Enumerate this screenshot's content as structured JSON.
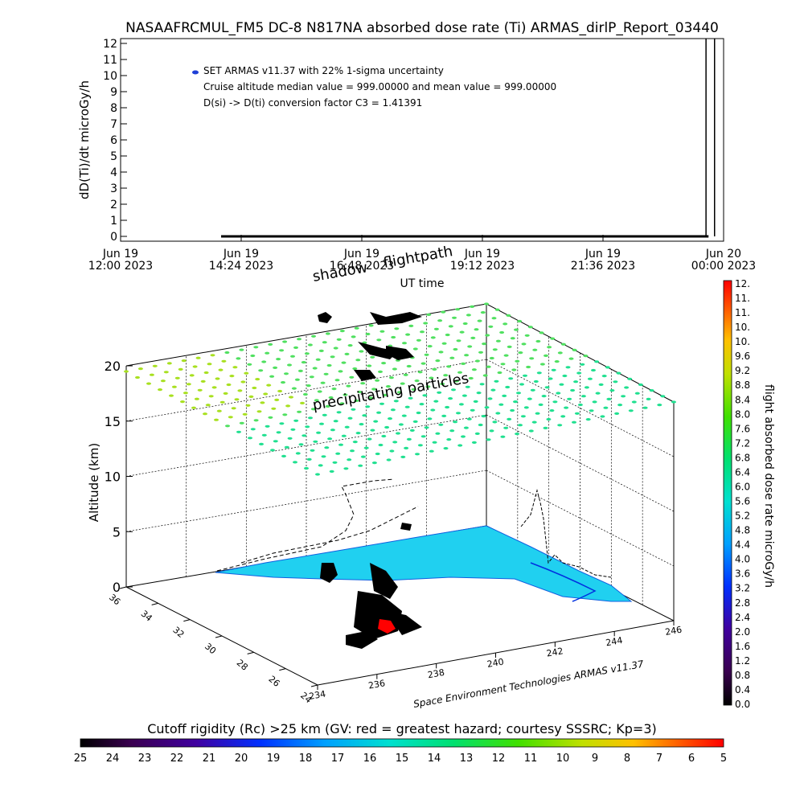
{
  "title": "NASAAFRCMUL_FM5 DC-8   N817NA absorbed dose rate (Ti) ARMAS_dirlP_Report_03440",
  "chart_data": [
    {
      "type": "line",
      "ylabel": "dD(Ti)/dt microGy/h",
      "xlabel": "UT time",
      "ylim": [
        0,
        12
      ],
      "yticks": [
        0,
        1,
        2,
        3,
        4,
        5,
        6,
        7,
        8,
        9,
        10,
        11,
        12
      ],
      "xticks": [
        {
          "line1": "Jun 19",
          "line2": "12:00 2023"
        },
        {
          "line1": "Jun 19",
          "line2": "14:24 2023"
        },
        {
          "line1": "Jun 19",
          "line2": "16:48 2023"
        },
        {
          "line1": "Jun 19",
          "line2": "19:12 2023"
        },
        {
          "line1": "Jun 19",
          "line2": "21:36 2023"
        },
        {
          "line1": "Jun 20",
          "line2": "00:00 2023"
        }
      ],
      "x_hours_range": [
        0,
        12
      ],
      "series": [
        {
          "name": "SET ARMAS v11.37 with 22% 1-sigma uncertainty",
          "x_hours": [
            2.0,
            11.7
          ],
          "y": [
            0,
            0
          ]
        }
      ],
      "spikes_hours": [
        11.65,
        11.82
      ],
      "legend_lines": [
        "SET ARMAS v11.37 with 22% 1-sigma uncertainty",
        "Cruise altitude median value = 999.00000 and mean value = 999.00000",
        "D(si) -> D(ti) conversion factor C3 = 1.41391"
      ],
      "legend_marker_color": "#1f3fd6"
    },
    {
      "type": "scatter",
      "ylabel": "Altitude (km)",
      "zticks": [
        0,
        5,
        10,
        15,
        20
      ],
      "lat_ticks": [
        "36",
        "34",
        "32",
        "30",
        "28",
        "26",
        "24"
      ],
      "lon_ticks": [
        "234",
        "236",
        "238",
        "240",
        "242",
        "244",
        "246"
      ],
      "annotations": [
        "flightpath",
        "shadow",
        "precipitating particles"
      ],
      "credit": "Space Environment Technologies ARMAS v11.37"
    }
  ],
  "colorbar_right": {
    "label": "flight absorbed dose rate microGy/h",
    "ticks": [
      "12.",
      "11.",
      "11.",
      "10.",
      "10.",
      "9.6",
      "9.2",
      "8.8",
      "8.4",
      "8.0",
      "7.6",
      "7.2",
      "6.8",
      "6.4",
      "6.0",
      "5.6",
      "5.2",
      "4.8",
      "4.4",
      "4.0",
      "3.6",
      "3.2",
      "2.8",
      "2.4",
      "2.0",
      "1.6",
      "1.2",
      "0.8",
      "0.4",
      "0.0"
    ]
  },
  "colorbar_bottom": {
    "label": "Cutoff rigidity (Rc) >25 km (GV: red = greatest hazard; courtesy SSSRC; Kp=3)",
    "ticks": [
      "25",
      "24",
      "23",
      "22",
      "21",
      "20",
      "19",
      "18",
      "17",
      "16",
      "15",
      "14",
      "13",
      "12",
      "11",
      "10",
      "9",
      "8",
      "7",
      "6",
      "5"
    ]
  }
}
